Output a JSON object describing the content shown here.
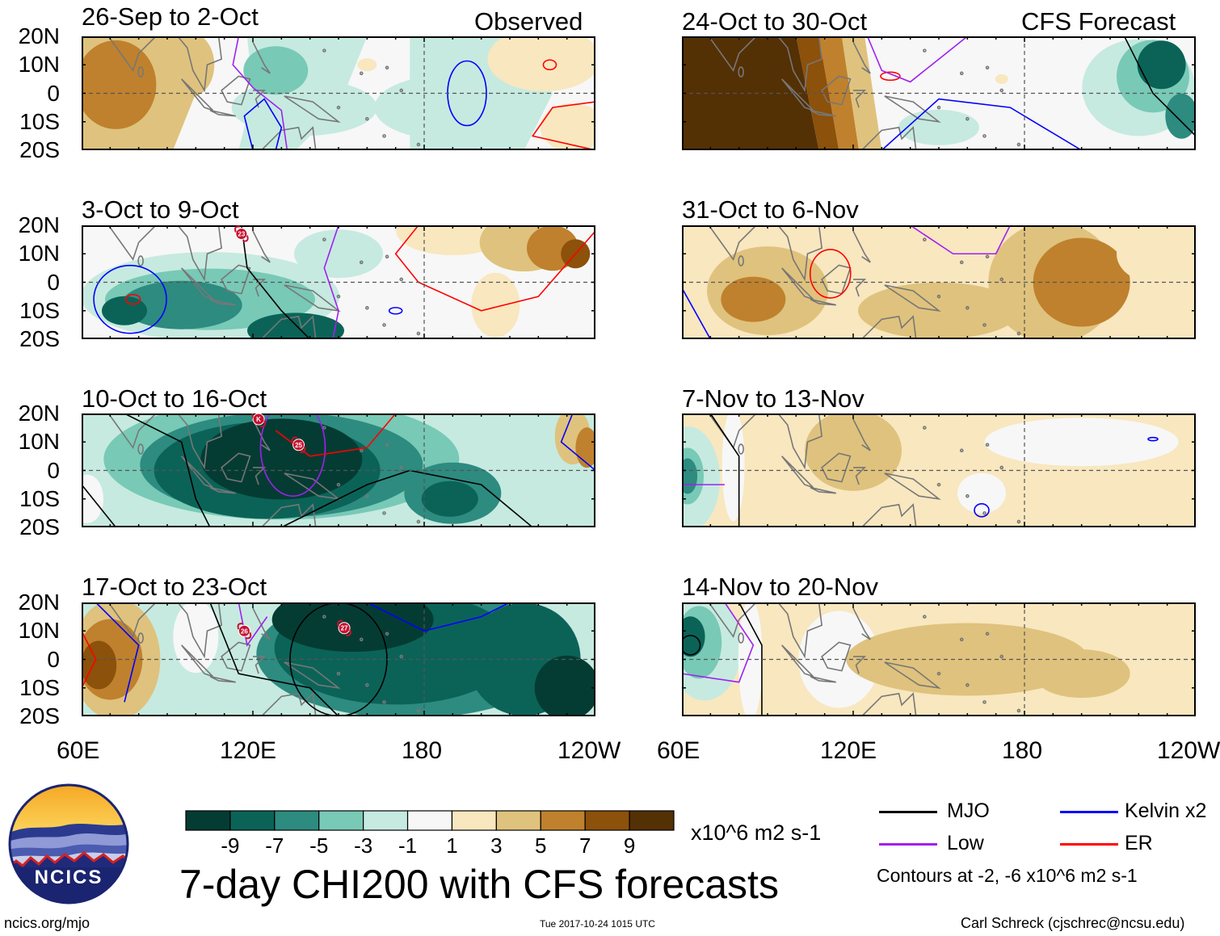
{
  "observed_label": "Observed",
  "forecast_label": "CFS Forecast",
  "lat_labels": [
    "20N",
    "10N",
    "0",
    "10S",
    "20S"
  ],
  "lon_labels": [
    "60E",
    "120E",
    "180",
    "120W"
  ],
  "panels": [
    {
      "title": "26-Sep to 2-Oct",
      "column": "observed",
      "pattern": "obs1"
    },
    {
      "title": "3-Oct to 9-Oct",
      "column": "observed",
      "pattern": "obs2"
    },
    {
      "title": "10-Oct to 16-Oct",
      "column": "observed",
      "pattern": "obs3"
    },
    {
      "title": "17-Oct to 23-Oct",
      "column": "observed",
      "pattern": "obs4"
    },
    {
      "title": "24-Oct to 30-Oct",
      "column": "forecast",
      "pattern": "fc1"
    },
    {
      "title": "31-Oct to 6-Nov",
      "column": "forecast",
      "pattern": "fc2"
    },
    {
      "title": "7-Nov to 13-Nov",
      "column": "forecast",
      "pattern": "fc3"
    },
    {
      "title": "14-Nov to 20-Nov",
      "column": "forecast",
      "pattern": "fc4"
    }
  ],
  "storm_markers": [
    {
      "panel": 1,
      "label": "23",
      "lon": 116,
      "lat": 17
    },
    {
      "panel": 2,
      "label": "K",
      "lon": 122,
      "lat": 18
    },
    {
      "panel": 2,
      "label": "25",
      "lon": 136,
      "lat": 9
    },
    {
      "panel": 3,
      "label": "26",
      "lon": 117,
      "lat": 10
    },
    {
      "panel": 3,
      "label": "27",
      "lon": 152,
      "lat": 11
    }
  ],
  "colorbar": {
    "colors": [
      "#043c33",
      "#0b6358",
      "#2d8b80",
      "#78c9b6",
      "#c6eae0",
      "#f7f7f7",
      "#f8e7bf",
      "#dfc27d",
      "#bf812d",
      "#8c510a",
      "#543005"
    ],
    "labels": [
      "-9",
      "-7",
      "-5",
      "-3",
      "-1",
      "1",
      "3",
      "5",
      "7",
      "9"
    ],
    "units": "x10^6 m2 s-1"
  },
  "main_title": "7-day CHI200 with CFS forecasts",
  "legend": {
    "items": [
      {
        "label": "MJO",
        "color": "#000000"
      },
      {
        "label": "Kelvin x2",
        "color": "#0000ff"
      },
      {
        "label": "Low",
        "color": "#a020f0"
      },
      {
        "label": "ER",
        "color": "#ff0000"
      }
    ],
    "contour_note": "Contours at -2, -6 x10^6 m2 s-1"
  },
  "logo_text": "NCICS",
  "footer": {
    "website": "ncics.org/mjo",
    "timestamp": "Tue 2017-10-24 1015 UTC",
    "author": "Carl Schreck (cjschrec@ncsu.edu)"
  }
}
